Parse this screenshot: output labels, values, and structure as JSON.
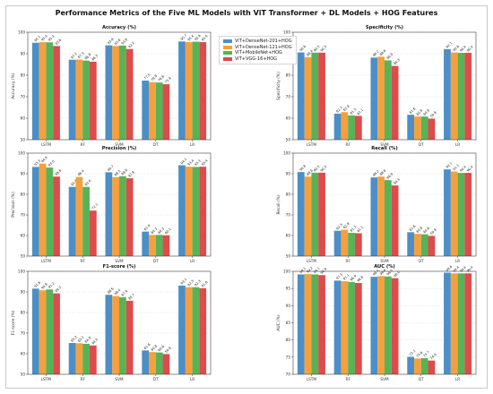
{
  "title": "Performance Metrics of the Five ML Models with ViT Transformer + DL Models + HOG Features",
  "colors": [
    "#4c8fc7",
    "#f5a03c",
    "#57b357",
    "#dd4b4b"
  ],
  "legend": [
    "ViT+DenseNet-201+HOG",
    "ViT+DenseNet-121+HOG",
    "ViT+MobileNet+HOG",
    "ViT+VGG-16+HOG"
  ],
  "chart_data": [
    {
      "type": "bar",
      "title": "Accuracy (%)",
      "ylabel": "Accuracy (%)",
      "categories": [
        "LSTM",
        "RF",
        "SVM",
        "DT",
        "LR"
      ],
      "ylim": [
        50,
        100
      ],
      "yticks": [
        50,
        60,
        70,
        80,
        90,
        100
      ],
      "series": [
        {
          "name": "ViT+DenseNet-201+HOG",
          "values": [
            95.1,
            87.2,
            93.9,
            77.5,
            95.7
          ]
        },
        {
          "name": "ViT+DenseNet-121+HOG",
          "values": [
            95.4,
            87.3,
            93.6,
            76.8,
            95.4
          ]
        },
        {
          "name": "ViT+MobileNet+HOG",
          "values": [
            95.3,
            86.8,
            93.8,
            76.6,
            95.6
          ]
        },
        {
          "name": "ViT+VGG-16+HOG",
          "values": [
            93.6,
            86.3,
            92.2,
            75.8,
            95.4
          ]
        }
      ]
    },
    {
      "type": "bar",
      "title": "Specificity (%)",
      "ylabel": "Specificity (%)",
      "categories": [
        "LSTM",
        "RF",
        "SVM",
        "DT",
        "LR"
      ],
      "ylim": [
        50,
        100
      ],
      "yticks": [
        50,
        60,
        70,
        80,
        90,
        100
      ],
      "series": [
        {
          "name": "ViT+DenseNet-201+HOG",
          "values": [
            90.6,
            62.1,
            88.2,
            61.6,
            92.1
          ]
        },
        {
          "name": "ViT+DenseNet-121+HOG",
          "values": [
            88.4,
            62.8,
            88.6,
            60.8,
            90.6
          ]
        },
        {
          "name": "ViT+MobileNet+HOG",
          "values": [
            90.5,
            61.3,
            86.9,
            60.8,
            90.4
          ]
        },
        {
          "name": "ViT+VGG-16+HOG",
          "values": [
            90.5,
            61.1,
            84.3,
            59.8,
            90.4
          ]
        }
      ]
    },
    {
      "type": "bar",
      "title": "Precision (%)",
      "ylabel": "Precision (%)",
      "categories": [
        "LSTM",
        "RF",
        "SVM",
        "DT",
        "LR"
      ],
      "ylim": [
        50,
        100
      ],
      "yticks": [
        50,
        60,
        70,
        80,
        90,
        100
      ],
      "series": [
        {
          "name": "ViT+DenseNet-201+HOG",
          "values": [
            93.3,
            83.6,
            90.7,
            61.9,
            94.1
          ]
        },
        {
          "name": "ViT+DenseNet-121+HOG",
          "values": [
            94.9,
            88.4,
            88.3,
            60.3,
            93.4
          ]
        },
        {
          "name": "ViT+MobileNet+HOG",
          "values": [
            93.0,
            83.6,
            88.8,
            60.3,
            93.3
          ]
        },
        {
          "name": "ViT+VGG-16+HOG",
          "values": [
            88.6,
            72.1,
            87.8,
            60.1,
            93.4
          ]
        }
      ]
    },
    {
      "type": "bar",
      "title": "Recall (%)",
      "ylabel": "Recall (%)",
      "categories": [
        "LSTM",
        "RF",
        "SVM",
        "DT",
        "LR"
      ],
      "ylim": [
        50,
        100
      ],
      "yticks": [
        50,
        60,
        70,
        80,
        90,
        100
      ],
      "series": [
        {
          "name": "ViT+DenseNet-201+HOG",
          "values": [
            90.8,
            62.3,
            88.2,
            61.6,
            92.1
          ]
        },
        {
          "name": "ViT+DenseNet-121+HOG",
          "values": [
            88.6,
            62.8,
            88.6,
            60.8,
            91.1
          ]
        },
        {
          "name": "ViT+MobileNet+HOG",
          "values": [
            90.5,
            61.3,
            86.9,
            60.6,
            90.4
          ]
        },
        {
          "name": "ViT+VGG-16+HOG",
          "values": [
            90.5,
            61.1,
            84.3,
            59.8,
            90.4
          ]
        }
      ]
    },
    {
      "type": "bar",
      "title": "F1-score (%)",
      "ylabel": "F1-score (%)",
      "categories": [
        "LSTM",
        "RF",
        "SVM",
        "DT",
        "LR"
      ],
      "ylim": [
        50,
        100
      ],
      "yticks": [
        50,
        60,
        70,
        80,
        90,
        100
      ],
      "series": [
        {
          "name": "ViT+DenseNet-201+HOG",
          "values": [
            91.6,
            65.2,
            88.6,
            61.6,
            93.1
          ]
        },
        {
          "name": "ViT+DenseNet-121+HOG",
          "values": [
            90.8,
            65.1,
            88.0,
            60.8,
            92.3
          ]
        },
        {
          "name": "ViT+MobileNet+HOG",
          "values": [
            91.2,
            64.8,
            87.4,
            60.6,
            92.3
          ]
        },
        {
          "name": "ViT+VGG-16+HOG",
          "values": [
            89.3,
            64.0,
            85.7,
            59.8,
            91.8
          ]
        }
      ]
    },
    {
      "type": "bar",
      "title": "AUC (%)",
      "ylabel": "AUC (%)",
      "categories": [
        "LSTM",
        "RF",
        "SVM",
        "DT",
        "LR"
      ],
      "ylim": [
        70,
        100
      ],
      "yticks": [
        70,
        75,
        80,
        85,
        90,
        95,
        100
      ],
      "series": [
        {
          "name": "ViT+DenseNet-201+HOG",
          "values": [
            99.1,
            97.3,
            98.4,
            75.1,
            99.6
          ]
        },
        {
          "name": "ViT+DenseNet-121+HOG",
          "values": [
            99.2,
            97.1,
            98.6,
            74.6,
            99.4
          ]
        },
        {
          "name": "ViT+MobileNet+HOG",
          "values": [
            99.1,
            96.9,
            98.5,
            74.7,
            99.4
          ]
        },
        {
          "name": "ViT+VGG-16+HOG",
          "values": [
            98.9,
            96.6,
            98.0,
            74.0,
            99.4
          ]
        }
      ]
    }
  ]
}
